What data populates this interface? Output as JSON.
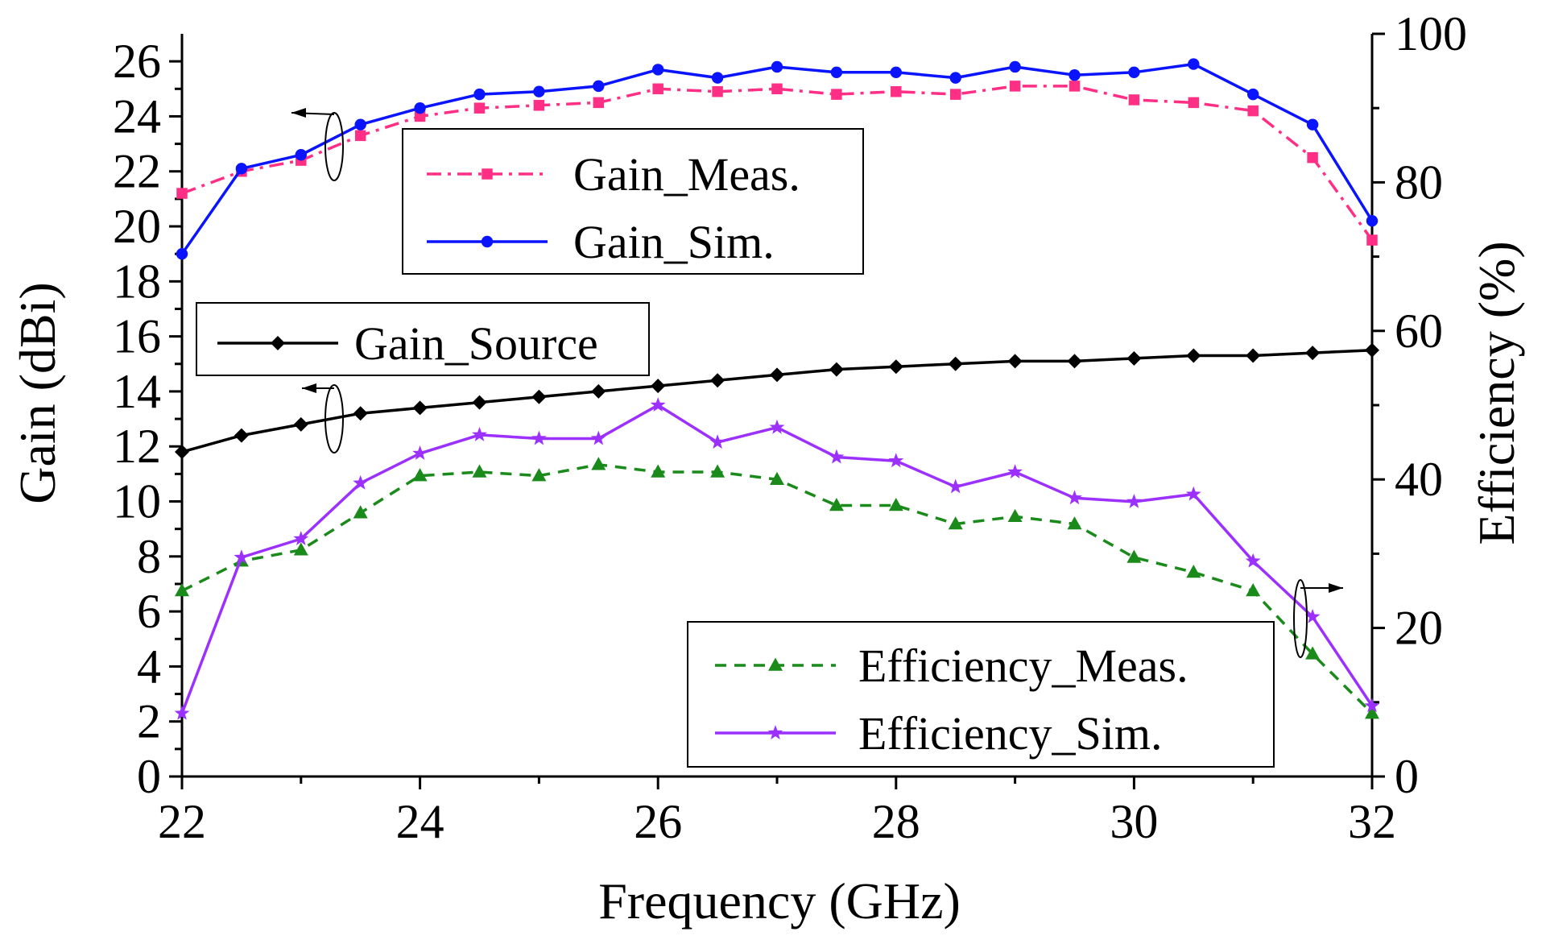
{
  "chart_data": {
    "type": "line",
    "xlabel": "Frequency (GHz)",
    "ylabel_left": "Gain (dBi)",
    "ylabel_right": "Efficiency (%)",
    "xlim": [
      22,
      32
    ],
    "ylim_left": [
      0,
      27
    ],
    "ylim_right": [
      0,
      100
    ],
    "x_ticks": [
      22,
      24,
      26,
      28,
      30,
      32
    ],
    "y_left_ticks": [
      0,
      2,
      4,
      6,
      8,
      10,
      12,
      14,
      16,
      18,
      20,
      22,
      24,
      26
    ],
    "y_right_ticks": [
      0,
      20,
      40,
      60,
      80,
      100
    ],
    "grid": false,
    "x": [
      22,
      22.5,
      23,
      23.5,
      24,
      24.5,
      25,
      25.5,
      26,
      26.5,
      27,
      27.5,
      28,
      28.5,
      29,
      29.5,
      30,
      30.5,
      31,
      31.5,
      32
    ],
    "series": [
      {
        "name": "Gain_Meas.",
        "axis": "left",
        "color": "#ff2f86",
        "dash": "dashdot",
        "marker": "square",
        "values": [
          21.2,
          22.0,
          22.4,
          23.3,
          24.0,
          24.3,
          24.4,
          24.5,
          25.0,
          24.9,
          25.0,
          24.8,
          24.9,
          24.8,
          25.1,
          25.1,
          24.6,
          24.5,
          24.2,
          22.5,
          19.5
        ]
      },
      {
        "name": "Gain_Sim.",
        "axis": "left",
        "color": "#0a14ff",
        "dash": "solid",
        "marker": "circle",
        "values": [
          19.0,
          22.1,
          22.6,
          23.7,
          24.3,
          24.8,
          24.9,
          25.1,
          25.7,
          25.4,
          25.8,
          25.6,
          25.6,
          25.4,
          25.8,
          25.5,
          25.6,
          25.9,
          24.8,
          23.7,
          20.2
        ]
      },
      {
        "name": "Gain_Source",
        "axis": "left",
        "color": "#000000",
        "dash": "solid",
        "marker": "diamond",
        "values": [
          11.8,
          12.4,
          12.8,
          13.2,
          13.4,
          13.6,
          13.8,
          14.0,
          14.2,
          14.4,
          14.6,
          14.8,
          14.9,
          15.0,
          15.1,
          15.1,
          15.2,
          15.3,
          15.3,
          15.4,
          15.5
        ]
      },
      {
        "name": "Efficiency_Meas.",
        "axis": "right",
        "color": "#1a8a1a",
        "dash": "dashed",
        "marker": "triangle",
        "values": [
          25.0,
          29.0,
          30.5,
          35.5,
          40.5,
          41.0,
          40.5,
          42.0,
          41.0,
          41.0,
          40.0,
          36.5,
          36.5,
          34.0,
          35.0,
          34.0,
          29.5,
          27.5,
          25.0,
          16.5,
          8.5
        ]
      },
      {
        "name": "Efficiency_Sim.",
        "axis": "right",
        "color": "#9b30ff",
        "dash": "solid",
        "marker": "star",
        "values": [
          8.5,
          29.5,
          32.0,
          39.5,
          43.5,
          46.0,
          45.5,
          45.5,
          50.0,
          45.0,
          47.0,
          43.0,
          42.5,
          39.0,
          41.0,
          37.5,
          37.0,
          38.0,
          29.0,
          21.5,
          9.5
        ]
      }
    ]
  }
}
